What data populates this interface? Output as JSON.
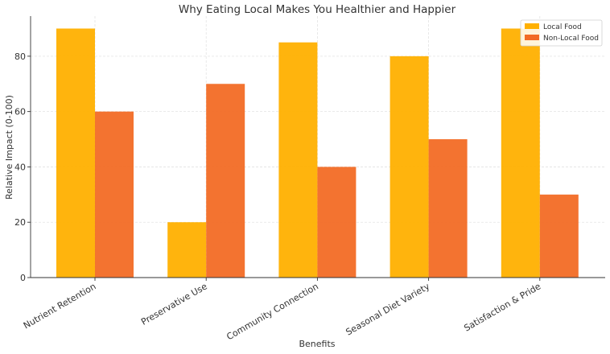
{
  "chart_data": {
    "type": "bar",
    "title": "Why Eating Local Makes You Healthier and Happier",
    "xlabel": "Benefits",
    "ylabel": "Relative Impact (0-100)",
    "categories": [
      "Nutrient Retention",
      "Preservative Use",
      "Community Connection",
      "Seasonal Diet Variety",
      "Satisfaction & Pride"
    ],
    "series": [
      {
        "name": "Local Food",
        "values": [
          90,
          20,
          85,
          80,
          90
        ],
        "color": "#ffb000"
      },
      {
        "name": "Non-Local Food",
        "values": [
          60,
          70,
          40,
          50,
          30
        ],
        "color": "#f26b25"
      }
    ],
    "ylim": [
      0,
      94.5
    ],
    "yticks": [
      0,
      20,
      40,
      60,
      80
    ],
    "grid": true,
    "legend": "top-right"
  }
}
